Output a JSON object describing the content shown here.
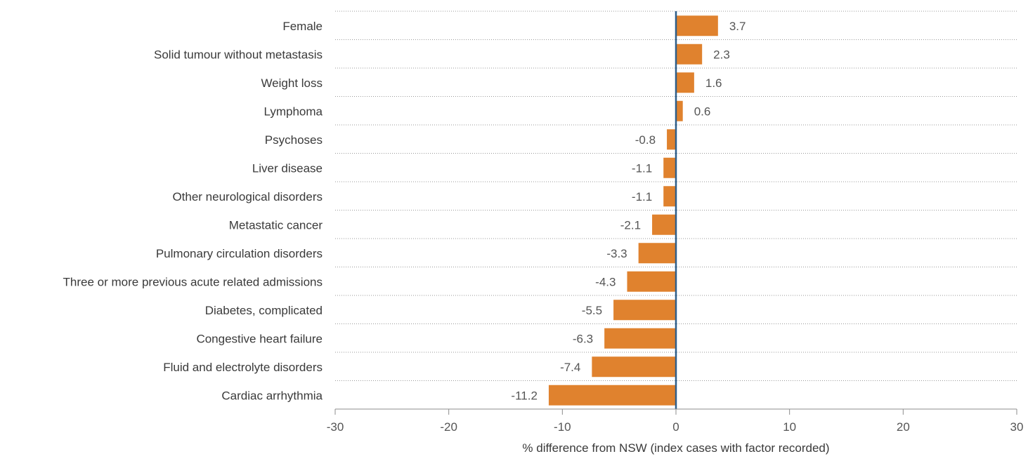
{
  "chart_data": {
    "type": "bar",
    "orientation": "horizontal",
    "categories": [
      "Female",
      "Solid tumour without metastasis",
      "Weight loss",
      "Lymphoma",
      "Psychoses",
      "Liver disease",
      "Other neurological disorders",
      "Metastatic cancer",
      "Pulmonary circulation disorders",
      "Three or more previous acute related admissions",
      "Diabetes, complicated",
      "Congestive heart failure",
      "Fluid and electrolyte disorders",
      "Cardiac arrhythmia"
    ],
    "values": [
      3.7,
      2.3,
      1.6,
      0.6,
      -0.8,
      -1.1,
      -1.1,
      -2.1,
      -3.3,
      -4.3,
      -5.5,
      -6.3,
      -7.4,
      -11.2
    ],
    "value_labels": [
      "3.7",
      "2.3",
      "1.6",
      "0.6",
      "-0.8",
      "-1.1",
      "-1.1",
      "-2.1",
      "-3.3",
      "-4.3",
      "-5.5",
      "-6.3",
      "-7.4",
      "-11.2"
    ],
    "title": "",
    "xlabel": "% difference from NSW (index cases with factor recorded)",
    "ylabel": "",
    "xlim": [
      -30,
      30
    ],
    "xticks": [
      -30,
      -20,
      -10,
      0,
      10,
      20,
      30
    ],
    "xtick_labels": [
      "-30",
      "-20",
      "-10",
      "0",
      "10",
      "20",
      "30"
    ],
    "grid": "horizontal dotted separators",
    "legend": "none",
    "colors": {
      "bar": "#E0822E",
      "zero_line": "#2F5F8A",
      "grid": "#9a9a9a",
      "axis": "#8c8c8c"
    }
  }
}
